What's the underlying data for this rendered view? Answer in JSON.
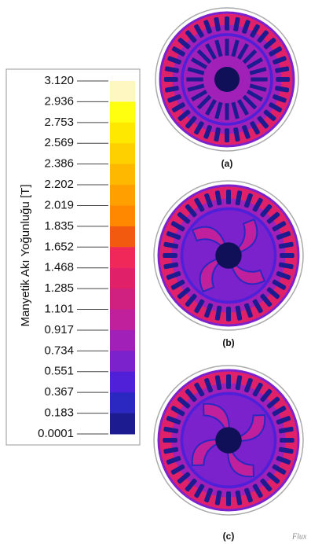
{
  "colorbar": {
    "label": "Manyetik Akı Yoğunluğu [T]",
    "ticks": [
      "3.120",
      "2.936",
      "2.753",
      "2.569",
      "2.386",
      "2.202",
      "2.019",
      "1.835",
      "1.652",
      "1.468",
      "1.285",
      "1.101",
      "0.917",
      "0.734",
      "0.551",
      "0.367",
      "0.183",
      "0.0001"
    ],
    "colors": [
      "#fff7c2",
      "#ffff10",
      "#ffe800",
      "#ffd000",
      "#ffb800",
      "#ffa000",
      "#ff8800",
      "#f25a10",
      "#f0285a",
      "#e02068",
      "#d02080",
      "#c0209c",
      "#a020b8",
      "#7c22cc",
      "#5020d8",
      "#2a28c0",
      "#1c1c90",
      "#101058"
    ]
  },
  "panels": [
    {
      "label": "(a)"
    },
    {
      "label": "(b)"
    },
    {
      "label": "(c)"
    }
  ],
  "logo": "Flux"
}
